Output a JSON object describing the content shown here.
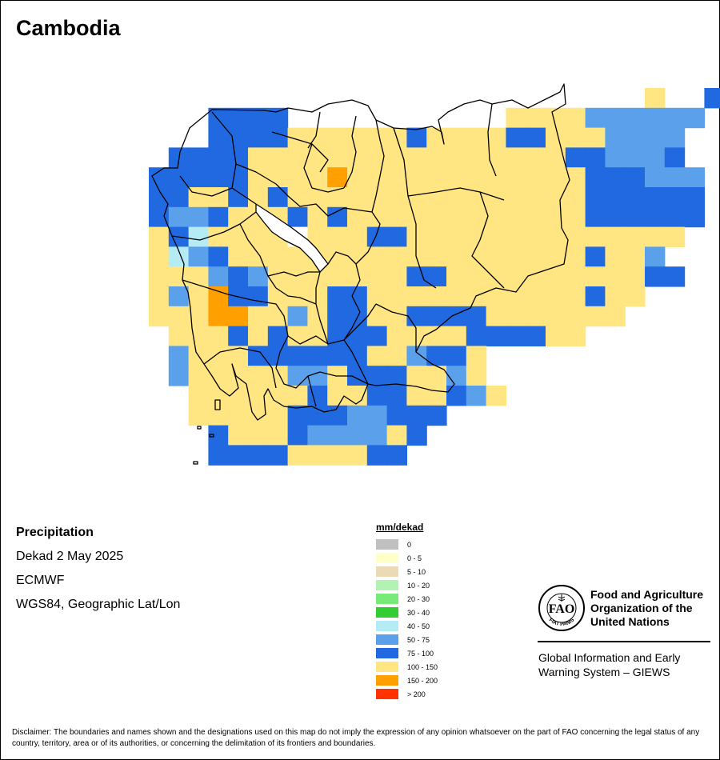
{
  "title": "Cambodia",
  "info": {
    "variable": "Precipitation",
    "period": "Dekad 2 May 2025",
    "source": "ECMWF",
    "projection": "WGS84, Geographic Lat/Lon"
  },
  "legend": {
    "title": "mm/dekad",
    "items": [
      {
        "label": "0",
        "color": "#c0c0c0"
      },
      {
        "label": "0 - 5",
        "color": "#ffffc8"
      },
      {
        "label": "5 - 10",
        "color": "#ecd9b6"
      },
      {
        "label": "10 - 20",
        "color": "#b2f2b2"
      },
      {
        "label": "20 - 30",
        "color": "#78ea78"
      },
      {
        "label": "30 - 40",
        "color": "#32cd32"
      },
      {
        "label": "40 - 50",
        "color": "#b4ebf5"
      },
      {
        "label": "50 - 75",
        "color": "#5aa0eb"
      },
      {
        "label": "75 - 100",
        "color": "#2069e0"
      },
      {
        "label": "100 - 150",
        "color": "#ffe682"
      },
      {
        "label": "150 - 200",
        "color": "#ffa000"
      },
      {
        "label": "> 200",
        "color": "#ff3200"
      }
    ]
  },
  "org": {
    "logo_ring": "FIAT PANIS",
    "fao_name": "Food and Agriculture Organization of the United Nations",
    "giews_name": "Global Information and Early Warning System – GIEWS"
  },
  "disclaimer": "Disclaimer: The boundaries and names shown and the designations used on this map do not imply the expression of any opinion whatsoever on the part of FAO concerning the legal status of any country, territory, area or of its authorities, or concerning the delimitation of its frontiers and boundaries."
}
